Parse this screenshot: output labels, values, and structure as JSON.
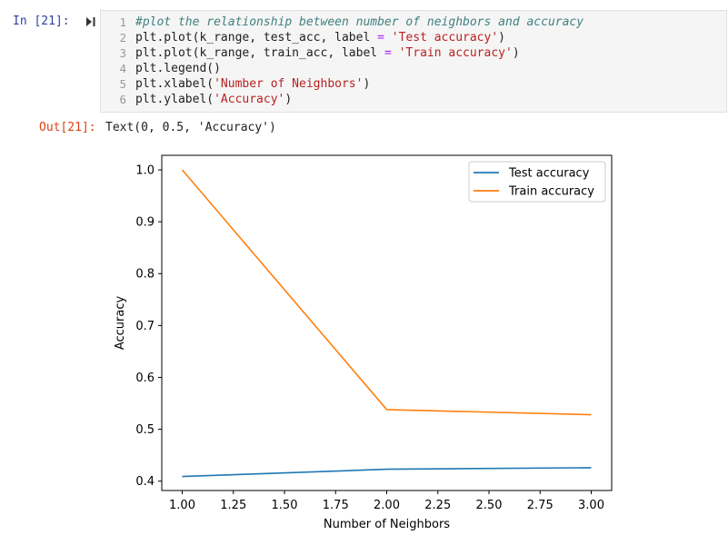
{
  "input_cell": {
    "prompt": "In [21]:",
    "line_numbers": [
      "1",
      "2",
      "3",
      "4",
      "5",
      "6"
    ],
    "lines": [
      [
        {
          "t": "cmt",
          "v": "#plot the relationship between number of neighbors and accuracy"
        }
      ],
      [
        {
          "t": "n",
          "v": "plt.plot(k_range, test_acc, label "
        },
        {
          "t": "op",
          "v": "="
        },
        {
          "t": "n",
          "v": " "
        },
        {
          "t": "str",
          "v": "'Test accuracy'"
        },
        {
          "t": "n",
          "v": ")"
        }
      ],
      [
        {
          "t": "n",
          "v": "plt.plot(k_range, train_acc, label "
        },
        {
          "t": "op",
          "v": "="
        },
        {
          "t": "n",
          "v": " "
        },
        {
          "t": "str",
          "v": "'Train accuracy'"
        },
        {
          "t": "n",
          "v": ")"
        }
      ],
      [
        {
          "t": "n",
          "v": "plt.legend()"
        }
      ],
      [
        {
          "t": "n",
          "v": "plt.xlabel("
        },
        {
          "t": "str",
          "v": "'Number of Neighbors'"
        },
        {
          "t": "n",
          "v": ")"
        }
      ],
      [
        {
          "t": "n",
          "v": "plt.ylabel("
        },
        {
          "t": "str",
          "v": "'Accuracy'"
        },
        {
          "t": "n",
          "v": ")"
        }
      ]
    ]
  },
  "output_cell": {
    "prompt": "Out[21]:",
    "text": "Text(0, 0.5, 'Accuracy')"
  },
  "colors": {
    "test": "#1f77b4",
    "train": "#ff7f0e"
  },
  "chart_data": {
    "type": "line",
    "x": [
      1,
      2,
      3
    ],
    "series": [
      {
        "name": "Test accuracy",
        "values": [
          0.409,
          0.423,
          0.426
        ]
      },
      {
        "name": "Train accuracy",
        "values": [
          1.0,
          0.538,
          0.528
        ]
      }
    ],
    "xlabel": "Number of Neighbors",
    "ylabel": "Accuracy",
    "xlim": [
      0.9,
      3.1
    ],
    "ylim": [
      0.382,
      1.028
    ],
    "xticks": [
      1.0,
      1.25,
      1.5,
      1.75,
      2.0,
      2.25,
      2.5,
      2.75,
      3.0
    ],
    "xtick_labels": [
      "1.00",
      "1.25",
      "1.50",
      "1.75",
      "2.00",
      "2.25",
      "2.50",
      "2.75",
      "3.00"
    ],
    "yticks": [
      0.4,
      0.5,
      0.6,
      0.7,
      0.8,
      0.9,
      1.0
    ],
    "ytick_labels": [
      "0.4",
      "0.5",
      "0.6",
      "0.7",
      "0.8",
      "0.9",
      "1.0"
    ],
    "grid": false,
    "legend": "top-right"
  }
}
